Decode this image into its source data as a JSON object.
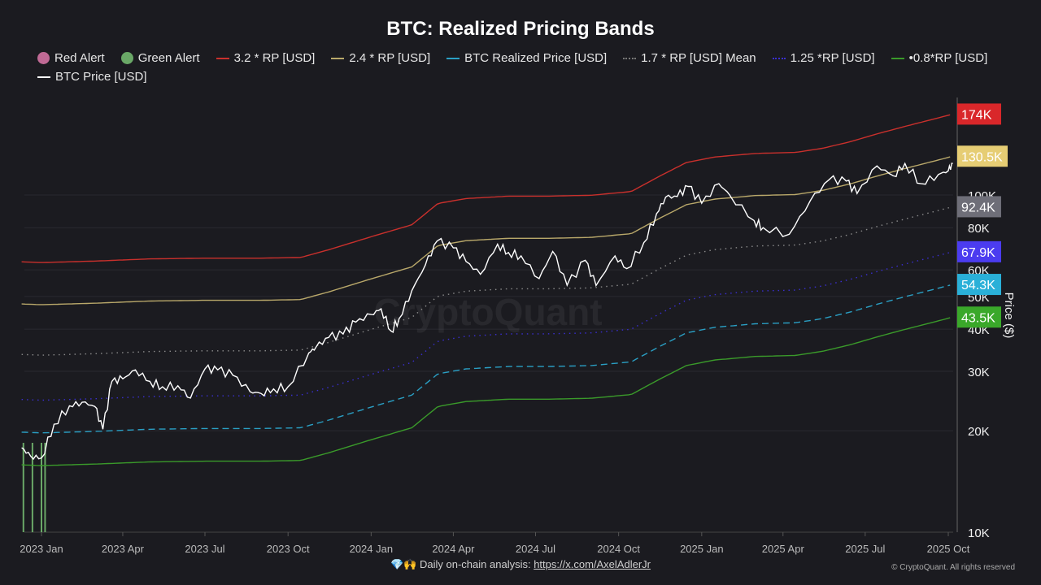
{
  "chart_data": {
    "type": "line",
    "title": "BTC: Realized Pricing Bands",
    "ylabel": "Price ($)",
    "yscale": "log",
    "ylim": [
      10000,
      200000
    ],
    "xlim": [
      "2022-12-10",
      "2025-10-08"
    ],
    "grid": true,
    "legend_position": "top",
    "x_ticks": [
      {
        "date": "2023-01-01",
        "label": "2023 Jan"
      },
      {
        "date": "2023-04-01",
        "label": "2023 Apr"
      },
      {
        "date": "2023-07-01",
        "label": "2023 Jul"
      },
      {
        "date": "2023-10-01",
        "label": "2023 Oct"
      },
      {
        "date": "2024-01-01",
        "label": "2024 Jan"
      },
      {
        "date": "2024-04-01",
        "label": "2024 Apr"
      },
      {
        "date": "2024-07-01",
        "label": "2024 Jul"
      },
      {
        "date": "2024-10-01",
        "label": "2024 Oct"
      },
      {
        "date": "2025-01-01",
        "label": "2025 Jan"
      },
      {
        "date": "2025-04-01",
        "label": "2025 Apr"
      },
      {
        "date": "2025-07-01",
        "label": "2025 Jul"
      },
      {
        "date": "2025-10-01",
        "label": "2025 Oct"
      }
    ],
    "y_ticks": [
      {
        "value": 10000,
        "label": "10K"
      },
      {
        "value": 20000,
        "label": "20K"
      },
      {
        "value": 30000,
        "label": "30K"
      },
      {
        "value": 40000,
        "label": "40K"
      },
      {
        "value": 50000,
        "label": "50K"
      },
      {
        "value": 60000,
        "label": "60K"
      },
      {
        "value": 80000,
        "label": "80K"
      },
      {
        "value": 100000,
        "label": "100K"
      }
    ],
    "legend": [
      {
        "name": "Red Alert",
        "kind": "dot",
        "color": "#c06a95"
      },
      {
        "name": "Green Alert",
        "kind": "dot",
        "color": "#6aa867"
      },
      {
        "name": "3.2 * RP [USD]",
        "kind": "line",
        "color": "#c9302c"
      },
      {
        "name": "2.4 * RP [USD]",
        "kind": "line",
        "color": "#b9a86a"
      },
      {
        "name": "BTC Realized Price [USD]",
        "kind": "line",
        "color": "#2a9fc4"
      },
      {
        "name": "1.7 * RP [USD] Mean",
        "kind": "dotline",
        "color": "#777777"
      },
      {
        "name": "1.25 *RP [USD]",
        "kind": "dotline",
        "color": "#3a2fd0"
      },
      {
        "name": "•0.8*RP [USD]",
        "kind": "line",
        "color": "#3a9a2a"
      },
      {
        "name": "BTC Price [USD]",
        "kind": "line",
        "color": "#ffffff"
      }
    ],
    "realized_price": {
      "dates": [
        "2022-12-10",
        "2023-01-01",
        "2023-03-01",
        "2023-05-01",
        "2023-07-01",
        "2023-09-01",
        "2023-10-15",
        "2023-11-15",
        "2024-01-01",
        "2024-02-15",
        "2024-03-15",
        "2024-04-15",
        "2024-06-01",
        "2024-07-15",
        "2024-09-01",
        "2024-10-15",
        "2024-11-15",
        "2024-12-15",
        "2025-01-15",
        "2025-03-01",
        "2025-04-15",
        "2025-05-15",
        "2025-06-15",
        "2025-07-15",
        "2025-08-15",
        "2025-09-15",
        "2025-10-06"
      ],
      "values": [
        19800,
        19700,
        19900,
        20200,
        20300,
        20300,
        20400,
        21500,
        23500,
        25500,
        29500,
        30500,
        31000,
        31000,
        31200,
        32000,
        35500,
        39000,
        40500,
        41500,
        41800,
        43000,
        45000,
        47500,
        50000,
        52500,
        54300
      ]
    },
    "bands": [
      {
        "name": "3.2 * RP [USD]",
        "multiplier": 3.2,
        "color": "#c9302c",
        "style": "solid",
        "last_label": "174K"
      },
      {
        "name": "2.4 * RP [USD]",
        "multiplier": 2.4,
        "color": "#b9a86a",
        "style": "solid",
        "last_label": "130.5K",
        "label_bg": "#e6cd74"
      },
      {
        "name": "1.7 * RP [USD] Mean",
        "multiplier": 1.7,
        "color": "#8a8a8a",
        "style": "dot",
        "last_label": "92.4K",
        "label_bg": "#6e6e78"
      },
      {
        "name": "1.25 *RP [USD]",
        "multiplier": 1.25,
        "color": "#3a2fd0",
        "style": "dot",
        "last_label": "67.9K",
        "label_bg": "#4b3cf0"
      },
      {
        "name": "BTC Realized Price [USD]",
        "multiplier": 1.0,
        "color": "#2a9fc4",
        "style": "dash",
        "last_label": "54.3K",
        "label_bg": "#2ab0d8"
      },
      {
        "name": "•0.8*RP [USD]",
        "multiplier": 0.8,
        "color": "#3a9a2a",
        "style": "solid",
        "last_label": "43.5K",
        "label_bg": "#3aa82a"
      }
    ],
    "btc_price": {
      "dates": [
        "2022-12-10",
        "2022-12-20",
        "2023-01-01",
        "2023-01-15",
        "2023-02-01",
        "2023-02-15",
        "2023-03-01",
        "2023-03-10",
        "2023-03-20",
        "2023-04-01",
        "2023-04-15",
        "2023-05-01",
        "2023-05-15",
        "2023-06-01",
        "2023-06-15",
        "2023-07-01",
        "2023-07-15",
        "2023-08-01",
        "2023-08-20",
        "2023-09-01",
        "2023-09-15",
        "2023-10-01",
        "2023-10-24",
        "2023-11-01",
        "2023-11-15",
        "2023-12-01",
        "2023-12-15",
        "2024-01-01",
        "2024-01-12",
        "2024-01-23",
        "2024-02-01",
        "2024-02-15",
        "2024-03-01",
        "2024-03-14",
        "2024-04-01",
        "2024-04-15",
        "2024-05-01",
        "2024-05-20",
        "2024-06-01",
        "2024-06-15",
        "2024-07-05",
        "2024-07-20",
        "2024-08-05",
        "2024-08-25",
        "2024-09-06",
        "2024-09-27",
        "2024-10-10",
        "2024-10-29",
        "2024-11-12",
        "2024-11-22",
        "2024-12-05",
        "2024-12-17",
        "2025-01-01",
        "2025-01-20",
        "2025-02-01",
        "2025-02-28",
        "2025-03-10",
        "2025-04-08",
        "2025-05-01",
        "2025-05-22",
        "2025-06-10",
        "2025-06-22",
        "2025-07-14",
        "2025-08-01",
        "2025-08-14",
        "2025-09-01",
        "2025-09-20",
        "2025-10-01",
        "2025-10-06"
      ],
      "values": [
        17800,
        16800,
        16600,
        20900,
        23700,
        24300,
        23600,
        20200,
        28000,
        28500,
        30300,
        28000,
        27000,
        27200,
        25000,
        30500,
        30300,
        29200,
        26100,
        25800,
        26600,
        27000,
        34000,
        35400,
        37800,
        38700,
        42000,
        44200,
        46000,
        39500,
        43000,
        52000,
        62000,
        73000,
        69700,
        63500,
        58200,
        71500,
        67500,
        66000,
        56500,
        68000,
        54000,
        64000,
        53900,
        66000,
        60500,
        72300,
        88000,
        98500,
        99000,
        106000,
        94500,
        108000,
        100000,
        84000,
        80000,
        76500,
        96000,
        111000,
        110000,
        101000,
        122000,
        114000,
        124000,
        108000,
        115000,
        118000,
        124000
      ]
    },
    "green_alerts": [
      "2022-12-12",
      "2022-12-22",
      "2023-01-01",
      "2023-01-05"
    ],
    "watermark": "CryptoQuant"
  },
  "footer": {
    "emoji": "💎🙌",
    "text": "Daily on-chain analysis: ",
    "link": "https://x.com/AxelAdlerJr",
    "copyright": "© CryptoQuant. All rights reserved"
  }
}
